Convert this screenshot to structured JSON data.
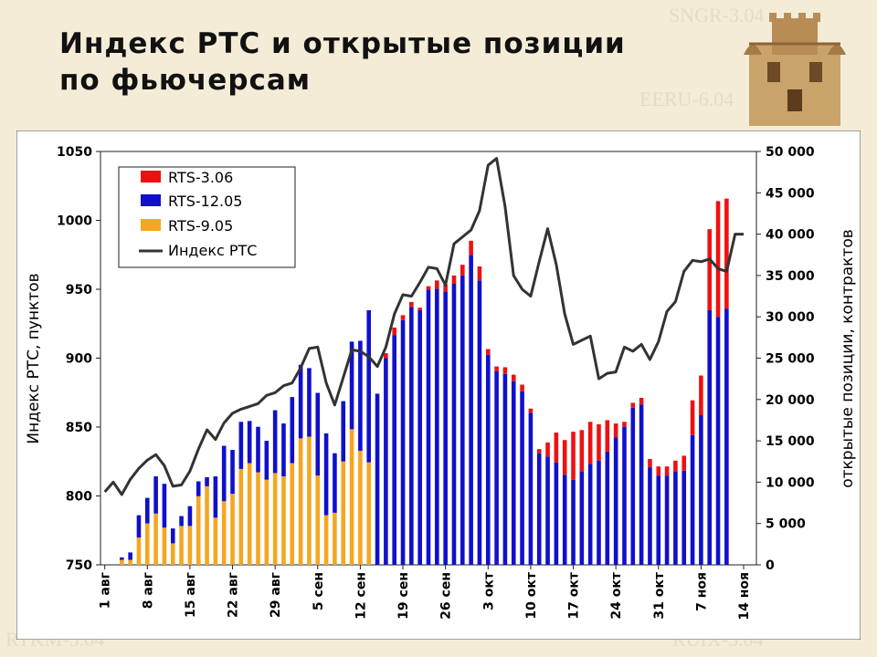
{
  "watermarks": [
    "SNGR-3.04",
    "EERU-6.04",
    "RTKM-3.04",
    "RUIX-3.04"
  ],
  "title": {
    "line1": "Индекс РТС и открытые позиции",
    "line2": "по фьючерсам"
  },
  "chart_data": {
    "type": "bar",
    "title": "Индекс РТС и открытые позиции по фьючерсам",
    "ylabel_left": "Индекс РТС, пунктов",
    "ylabel_right": "открытые позиции, контрактов",
    "ylim_left": [
      750,
      1050
    ],
    "yticks_left": [
      "750",
      "800",
      "850",
      "900",
      "950",
      "1000",
      "1050"
    ],
    "ylim_right": [
      0,
      50000
    ],
    "yticks_right": [
      "0",
      "5 000",
      "10 000",
      "15 000",
      "20 000",
      "25 000",
      "30 000",
      "35 000",
      "40 000",
      "45 000",
      "50 000"
    ],
    "xticks": [
      {
        "i": 0,
        "label": "1 авг"
      },
      {
        "i": 5,
        "label": "8 авг"
      },
      {
        "i": 10,
        "label": "15 авг"
      },
      {
        "i": 15,
        "label": "22 авг"
      },
      {
        "i": 20,
        "label": "29 авг"
      },
      {
        "i": 25,
        "label": "5 сен"
      },
      {
        "i": 30,
        "label": "12 сен"
      },
      {
        "i": 35,
        "label": "19 сен"
      },
      {
        "i": 40,
        "label": "26 сен"
      },
      {
        "i": 45,
        "label": "3 окт"
      },
      {
        "i": 50,
        "label": "10 окт"
      },
      {
        "i": 55,
        "label": "17 окт"
      },
      {
        "i": 60,
        "label": "24 окт"
      },
      {
        "i": 65,
        "label": "31 окт"
      },
      {
        "i": 70,
        "label": "7 ноя"
      },
      {
        "i": 75,
        "label": "14 ноя"
      }
    ],
    "legend": [
      {
        "name": "RTS-3.06",
        "color": "#ee1111",
        "kind": "bar"
      },
      {
        "name": "RTS-12.05",
        "color": "#1010cc",
        "kind": "bar"
      },
      {
        "name": "RTS-9.05",
        "color": "#f5a623",
        "kind": "bar"
      },
      {
        "name": "Индекс РТС",
        "color": "#333333",
        "kind": "line"
      }
    ],
    "legend_position": "top-left",
    "bars": [
      {
        "i": 2,
        "s905": 600,
        "s1205": 300,
        "s306": 0
      },
      {
        "i": 3,
        "s905": 600,
        "s1205": 900,
        "s306": 0
      },
      {
        "i": 4,
        "s905": 3300,
        "s1205": 2700,
        "s306": 0
      },
      {
        "i": 5,
        "s905": 5000,
        "s1205": 3100,
        "s306": 0
      },
      {
        "i": 6,
        "s905": 6200,
        "s1205": 4500,
        "s306": 0
      },
      {
        "i": 7,
        "s905": 4500,
        "s1205": 5300,
        "s306": 0
      },
      {
        "i": 8,
        "s905": 2600,
        "s1205": 1800,
        "s306": 0
      },
      {
        "i": 9,
        "s905": 4700,
        "s1205": 1200,
        "s306": 0
      },
      {
        "i": 10,
        "s905": 4700,
        "s1205": 2400,
        "s306": 0
      },
      {
        "i": 11,
        "s905": 8300,
        "s1205": 1800,
        "s306": 0
      },
      {
        "i": 12,
        "s905": 9500,
        "s1205": 1100,
        "s306": 0
      },
      {
        "i": 13,
        "s905": 5700,
        "s1205": 5000,
        "s306": 0
      },
      {
        "i": 14,
        "s905": 7700,
        "s1205": 6700,
        "s306": 0
      },
      {
        "i": 15,
        "s905": 8600,
        "s1205": 5300,
        "s306": 0
      },
      {
        "i": 16,
        "s905": 11600,
        "s1205": 5700,
        "s306": 0
      },
      {
        "i": 17,
        "s905": 12300,
        "s1205": 5100,
        "s306": 0
      },
      {
        "i": 18,
        "s905": 11200,
        "s1205": 5500,
        "s306": 0
      },
      {
        "i": 19,
        "s905": 10300,
        "s1205": 4700,
        "s306": 0
      },
      {
        "i": 20,
        "s905": 11100,
        "s1205": 7600,
        "s306": 0
      },
      {
        "i": 21,
        "s905": 10700,
        "s1205": 6400,
        "s306": 0
      },
      {
        "i": 22,
        "s905": 12300,
        "s1205": 8000,
        "s306": 0
      },
      {
        "i": 23,
        "s905": 15300,
        "s1205": 8900,
        "s306": 0
      },
      {
        "i": 24,
        "s905": 15500,
        "s1205": 8300,
        "s306": 0
      },
      {
        "i": 25,
        "s905": 10800,
        "s1205": 10000,
        "s306": 0
      },
      {
        "i": 26,
        "s905": 6000,
        "s1205": 9900,
        "s306": 0
      },
      {
        "i": 27,
        "s905": 6300,
        "s1205": 7200,
        "s306": 0
      },
      {
        "i": 28,
        "s905": 12500,
        "s1205": 7300,
        "s306": 0
      },
      {
        "i": 29,
        "s905": 16400,
        "s1205": 10600,
        "s306": 0
      },
      {
        "i": 30,
        "s905": 13800,
        "s1205": 13300,
        "s306": 0
      },
      {
        "i": 31,
        "s905": 12400,
        "s1205": 18400,
        "s306": 0
      },
      {
        "i": 32,
        "s905": 0,
        "s1205": 20700,
        "s306": 0
      },
      {
        "i": 33,
        "s905": 0,
        "s1205": 25000,
        "s306": 600
      },
      {
        "i": 34,
        "s905": 0,
        "s1205": 27800,
        "s306": 900
      },
      {
        "i": 35,
        "s905": 0,
        "s1205": 29600,
        "s306": 600
      },
      {
        "i": 36,
        "s905": 0,
        "s1205": 31200,
        "s306": 600
      },
      {
        "i": 37,
        "s905": 0,
        "s1205": 30800,
        "s306": 300
      },
      {
        "i": 38,
        "s905": 0,
        "s1205": 33300,
        "s306": 400
      },
      {
        "i": 39,
        "s905": 0,
        "s1205": 33400,
        "s306": 1000
      },
      {
        "i": 40,
        "s905": 0,
        "s1205": 33000,
        "s306": 900
      },
      {
        "i": 41,
        "s905": 0,
        "s1205": 34000,
        "s306": 1000
      },
      {
        "i": 42,
        "s905": 0,
        "s1205": 35000,
        "s306": 1300
      },
      {
        "i": 43,
        "s905": 0,
        "s1205": 37500,
        "s306": 1700
      },
      {
        "i": 44,
        "s905": 0,
        "s1205": 34400,
        "s306": 1700
      },
      {
        "i": 45,
        "s905": 0,
        "s1205": 25400,
        "s306": 700
      },
      {
        "i": 46,
        "s905": 0,
        "s1205": 23400,
        "s306": 600
      },
      {
        "i": 47,
        "s905": 0,
        "s1205": 23100,
        "s306": 800
      },
      {
        "i": 48,
        "s905": 0,
        "s1205": 22200,
        "s306": 800
      },
      {
        "i": 49,
        "s905": 0,
        "s1205": 21000,
        "s306": 800
      },
      {
        "i": 50,
        "s905": 0,
        "s1205": 18400,
        "s306": 500
      },
      {
        "i": 51,
        "s905": 0,
        "s1205": 13500,
        "s306": 500
      },
      {
        "i": 52,
        "s905": 0,
        "s1205": 13100,
        "s306": 1700
      },
      {
        "i": 53,
        "s905": 0,
        "s1205": 12400,
        "s306": 3600
      },
      {
        "i": 54,
        "s905": 0,
        "s1205": 10900,
        "s306": 4200
      },
      {
        "i": 55,
        "s905": 0,
        "s1205": 10300,
        "s306": 5800
      },
      {
        "i": 56,
        "s905": 0,
        "s1205": 11300,
        "s306": 5000
      },
      {
        "i": 57,
        "s905": 0,
        "s1205": 12200,
        "s306": 5100
      },
      {
        "i": 58,
        "s905": 0,
        "s1205": 12600,
        "s306": 4400
      },
      {
        "i": 59,
        "s905": 0,
        "s1205": 13700,
        "s306": 3800
      },
      {
        "i": 60,
        "s905": 0,
        "s1205": 15400,
        "s306": 1700
      },
      {
        "i": 61,
        "s905": 0,
        "s1205": 16700,
        "s306": 600
      },
      {
        "i": 62,
        "s905": 0,
        "s1205": 19000,
        "s306": 600
      },
      {
        "i": 63,
        "s905": 0,
        "s1205": 19400,
        "s306": 800
      },
      {
        "i": 64,
        "s905": 0,
        "s1205": 11800,
        "s306": 1000
      },
      {
        "i": 65,
        "s905": 0,
        "s1205": 10800,
        "s306": 1100
      },
      {
        "i": 66,
        "s905": 0,
        "s1205": 10800,
        "s306": 1100
      },
      {
        "i": 67,
        "s905": 0,
        "s1205": 11300,
        "s306": 1300
      },
      {
        "i": 68,
        "s905": 0,
        "s1205": 11400,
        "s306": 1800
      },
      {
        "i": 69,
        "s905": 0,
        "s1205": 15700,
        "s306": 4200
      },
      {
        "i": 70,
        "s905": 0,
        "s1205": 18100,
        "s306": 4800
      },
      {
        "i": 71,
        "s905": 0,
        "s1205": 30800,
        "s306": 9800
      },
      {
        "i": 72,
        "s905": 0,
        "s1205": 30000,
        "s306": 14000
      },
      {
        "i": 73,
        "s905": 0,
        "s1205": 31000,
        "s306": 13300
      }
    ],
    "index_line": [
      {
        "i": 0,
        "v": 803
      },
      {
        "i": 1,
        "v": 810
      },
      {
        "i": 2,
        "v": 801
      },
      {
        "i": 3,
        "v": 812
      },
      {
        "i": 4,
        "v": 820
      },
      {
        "i": 5,
        "v": 826
      },
      {
        "i": 6,
        "v": 830
      },
      {
        "i": 7,
        "v": 822
      },
      {
        "i": 8,
        "v": 807
      },
      {
        "i": 9,
        "v": 808
      },
      {
        "i": 10,
        "v": 818
      },
      {
        "i": 11,
        "v": 834
      },
      {
        "i": 12,
        "v": 848
      },
      {
        "i": 13,
        "v": 841
      },
      {
        "i": 14,
        "v": 853
      },
      {
        "i": 15,
        "v": 860
      },
      {
        "i": 16,
        "v": 863
      },
      {
        "i": 17,
        "v": 865
      },
      {
        "i": 18,
        "v": 867
      },
      {
        "i": 19,
        "v": 873
      },
      {
        "i": 20,
        "v": 875
      },
      {
        "i": 21,
        "v": 880
      },
      {
        "i": 22,
        "v": 882
      },
      {
        "i": 23,
        "v": 893
      },
      {
        "i": 24,
        "v": 907
      },
      {
        "i": 25,
        "v": 908
      },
      {
        "i": 26,
        "v": 882
      },
      {
        "i": 27,
        "v": 866
      },
      {
        "i": 28,
        "v": 886
      },
      {
        "i": 29,
        "v": 906
      },
      {
        "i": 30,
        "v": 905
      },
      {
        "i": 31,
        "v": 901
      },
      {
        "i": 32,
        "v": 894
      },
      {
        "i": 33,
        "v": 908
      },
      {
        "i": 34,
        "v": 932
      },
      {
        "i": 35,
        "v": 946
      },
      {
        "i": 36,
        "v": 945
      },
      {
        "i": 37,
        "v": 955
      },
      {
        "i": 38,
        "v": 966
      },
      {
        "i": 39,
        "v": 965
      },
      {
        "i": 40,
        "v": 953
      },
      {
        "i": 41,
        "v": 983
      },
      {
        "i": 42,
        "v": 988
      },
      {
        "i": 43,
        "v": 993
      },
      {
        "i": 44,
        "v": 1007
      },
      {
        "i": 45,
        "v": 1040
      },
      {
        "i": 46,
        "v": 1045
      },
      {
        "i": 47,
        "v": 1010
      },
      {
        "i": 48,
        "v": 960
      },
      {
        "i": 49,
        "v": 950
      },
      {
        "i": 50,
        "v": 945
      },
      {
        "i": 51,
        "v": 970
      },
      {
        "i": 52,
        "v": 994
      },
      {
        "i": 53,
        "v": 968
      },
      {
        "i": 54,
        "v": 932
      },
      {
        "i": 55,
        "v": 910
      },
      {
        "i": 56,
        "v": 913
      },
      {
        "i": 57,
        "v": 916
      },
      {
        "i": 58,
        "v": 885
      },
      {
        "i": 59,
        "v": 889
      },
      {
        "i": 60,
        "v": 890
      },
      {
        "i": 61,
        "v": 908
      },
      {
        "i": 62,
        "v": 905
      },
      {
        "i": 63,
        "v": 910
      },
      {
        "i": 64,
        "v": 899
      },
      {
        "i": 65,
        "v": 912
      },
      {
        "i": 66,
        "v": 934
      },
      {
        "i": 67,
        "v": 941
      },
      {
        "i": 68,
        "v": 963
      },
      {
        "i": 69,
        "v": 971
      },
      {
        "i": 70,
        "v": 970
      },
      {
        "i": 71,
        "v": 972
      },
      {
        "i": 72,
        "v": 965
      },
      {
        "i": 73,
        "v": 963
      },
      {
        "i": 74,
        "v": 990
      },
      {
        "i": 75,
        "v": 990
      }
    ]
  }
}
